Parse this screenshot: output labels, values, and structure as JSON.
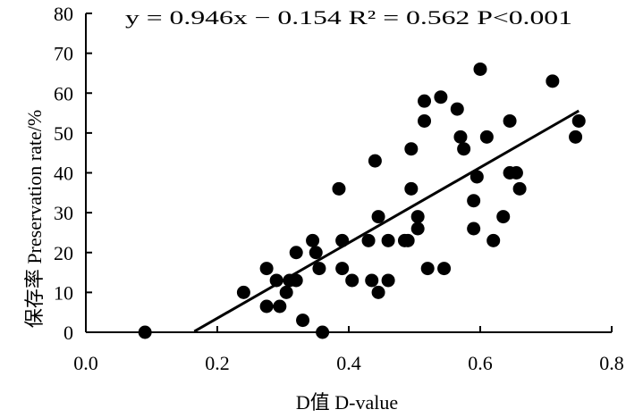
{
  "chart_data": {
    "type": "scatter",
    "annotation": "y = 0.946x − 0.154  R² = 0.562  P<0.001",
    "xlabel": "D值 D-value",
    "ylabel": "保存率 Preservation rate/%",
    "xlim": [
      0.0,
      0.8
    ],
    "ylim": [
      0,
      80
    ],
    "xticks": [
      "0.0",
      "0.2",
      "0.4",
      "0.6",
      "0.8"
    ],
    "yticks": [
      "0",
      "10",
      "20",
      "30",
      "40",
      "50",
      "60",
      "70",
      "80"
    ],
    "grid": false,
    "legend": "none",
    "marker_color": "#000000",
    "series": [
      {
        "points": [
          [
            0.09,
            0
          ],
          [
            0.24,
            10
          ],
          [
            0.275,
            16
          ],
          [
            0.275,
            6.5
          ],
          [
            0.29,
            13
          ],
          [
            0.295,
            6.5
          ],
          [
            0.305,
            10
          ],
          [
            0.31,
            13
          ],
          [
            0.32,
            13
          ],
          [
            0.32,
            20
          ],
          [
            0.33,
            3
          ],
          [
            0.345,
            23
          ],
          [
            0.35,
            20
          ],
          [
            0.355,
            16
          ],
          [
            0.36,
            0
          ],
          [
            0.385,
            36
          ],
          [
            0.39,
            23
          ],
          [
            0.39,
            16
          ],
          [
            0.405,
            13
          ],
          [
            0.43,
            23
          ],
          [
            0.435,
            13
          ],
          [
            0.44,
            43
          ],
          [
            0.445,
            10
          ],
          [
            0.445,
            29
          ],
          [
            0.46,
            13
          ],
          [
            0.46,
            23
          ],
          [
            0.485,
            23
          ],
          [
            0.49,
            23
          ],
          [
            0.495,
            36
          ],
          [
            0.495,
            46
          ],
          [
            0.505,
            29
          ],
          [
            0.505,
            26
          ],
          [
            0.515,
            53
          ],
          [
            0.515,
            58
          ],
          [
            0.52,
            16
          ],
          [
            0.54,
            59
          ],
          [
            0.545,
            16
          ],
          [
            0.565,
            56
          ],
          [
            0.57,
            49
          ],
          [
            0.575,
            46
          ],
          [
            0.59,
            33
          ],
          [
            0.59,
            26
          ],
          [
            0.595,
            39
          ],
          [
            0.6,
            66
          ],
          [
            0.61,
            49
          ],
          [
            0.62,
            23
          ],
          [
            0.635,
            29
          ],
          [
            0.645,
            53
          ],
          [
            0.645,
            40
          ],
          [
            0.655,
            40
          ],
          [
            0.66,
            36
          ],
          [
            0.71,
            63
          ],
          [
            0.745,
            49
          ],
          [
            0.75,
            53
          ]
        ]
      }
    ],
    "regression": {
      "slope": 0.946,
      "intercept": -0.154,
      "x_range": [
        0.165,
        0.75
      ]
    }
  }
}
